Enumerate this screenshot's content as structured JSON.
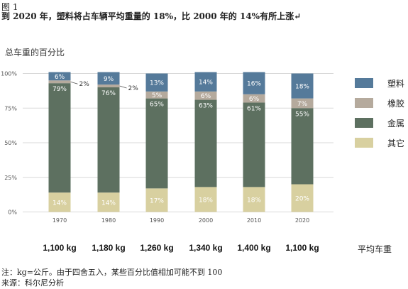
{
  "figure_label": "图 1",
  "headline": "到 2020 年，塑料将占车辆平均重量的 18%，比 2000 年的 14%有所上涨↵",
  "note": "注：kg=公斤。由于四舍五入，某些百分比值相加可能不到 100",
  "source": "来源：科尔尼分析",
  "colors": {
    "plastic": "#557a9a",
    "rubber": "#b5aa9d",
    "metal": "#5d7060",
    "other": "#d8d0a0",
    "grid": "#d9d9d9",
    "axis_text": "#555555"
  },
  "chart_data": {
    "type": "bar",
    "stacked": true,
    "ylabel": "总车重的百分比",
    "ylim": [
      0,
      100
    ],
    "yticks": [
      "0%",
      "25%",
      "50%",
      "75%",
      "100%"
    ],
    "categories": [
      "1970",
      "1980",
      "1990",
      "2000",
      "2010",
      "2020"
    ],
    "weights": [
      "1,100 kg",
      "1,180 kg",
      "1,260 kg",
      "1,340 kg",
      "1,400 kg",
      "1,100 kg"
    ],
    "weights_label": "平均车重",
    "series": [
      {
        "name": "其它",
        "key": "other",
        "values": [
          14,
          14,
          17,
          18,
          18,
          20
        ],
        "labels": [
          "14%",
          "14%",
          "17%",
          "18%",
          "18%",
          "20%"
        ]
      },
      {
        "name": "金属",
        "key": "metal",
        "values": [
          79,
          76,
          65,
          63,
          61,
          55
        ],
        "labels": [
          "79%",
          "76%",
          "65%",
          "63%",
          "61%",
          "55%"
        ]
      },
      {
        "name": "橡胶",
        "key": "rubber",
        "values": [
          2,
          2,
          5,
          6,
          6,
          7
        ],
        "labels": [
          "2%",
          "2%",
          "5%",
          "6%",
          "6%",
          "7%"
        ]
      },
      {
        "name": "塑料",
        "key": "plastic",
        "values": [
          6,
          9,
          13,
          14,
          16,
          18
        ],
        "labels": [
          "6%",
          "9%",
          "13%",
          "14%",
          "16%",
          "18%"
        ]
      }
    ],
    "legend_order": [
      "塑料",
      "橡胶",
      "金属",
      "其它"
    ],
    "legend_position": "right",
    "grid": true
  }
}
